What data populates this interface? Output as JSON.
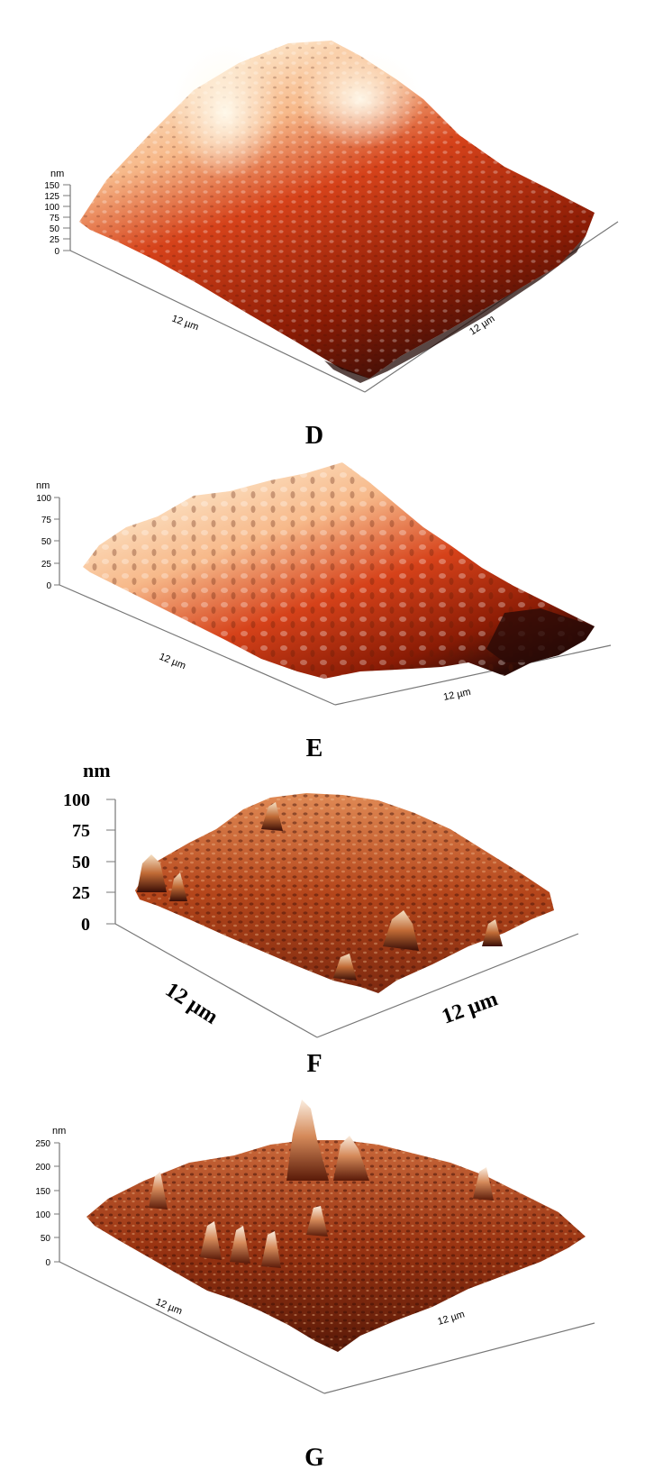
{
  "panels": [
    {
      "letter": "D",
      "z_unit": "nm",
      "z_ticks": [
        "150",
        "125",
        "100",
        "75",
        "50",
        "25",
        "0"
      ],
      "x_label": "12 µm",
      "y_label": "12 µm",
      "palette": [
        "#2a0a06",
        "#8b1c05",
        "#d6421a",
        "#f7b98a",
        "#fff6e0"
      ]
    },
    {
      "letter": "E",
      "z_unit": "nm",
      "z_ticks": [
        "100",
        "75",
        "50",
        "25",
        "0"
      ],
      "x_label": "12 µm",
      "y_label": "12 µm",
      "palette": [
        "#2a0a06",
        "#8b1c05",
        "#d6421a",
        "#f7b98a",
        "#fff6e0"
      ]
    },
    {
      "letter": "F",
      "z_unit": "nm",
      "z_ticks": [
        "100",
        "75",
        "50",
        "25",
        "0"
      ],
      "x_label": "12 µm",
      "y_label": "12 µm",
      "palette": [
        "#3a0e06",
        "#7e2a10",
        "#b5461b",
        "#e08a55",
        "#f5e1c5"
      ]
    },
    {
      "letter": "G",
      "z_unit": "nm",
      "z_ticks": [
        "250",
        "200",
        "150",
        "100",
        "50",
        "0"
      ],
      "x_label": "12 µm",
      "y_label": "12 µm",
      "palette": [
        "#3a0e06",
        "#7e2a10",
        "#b5461b",
        "#e08a55",
        "#fbeee0"
      ]
    }
  ]
}
